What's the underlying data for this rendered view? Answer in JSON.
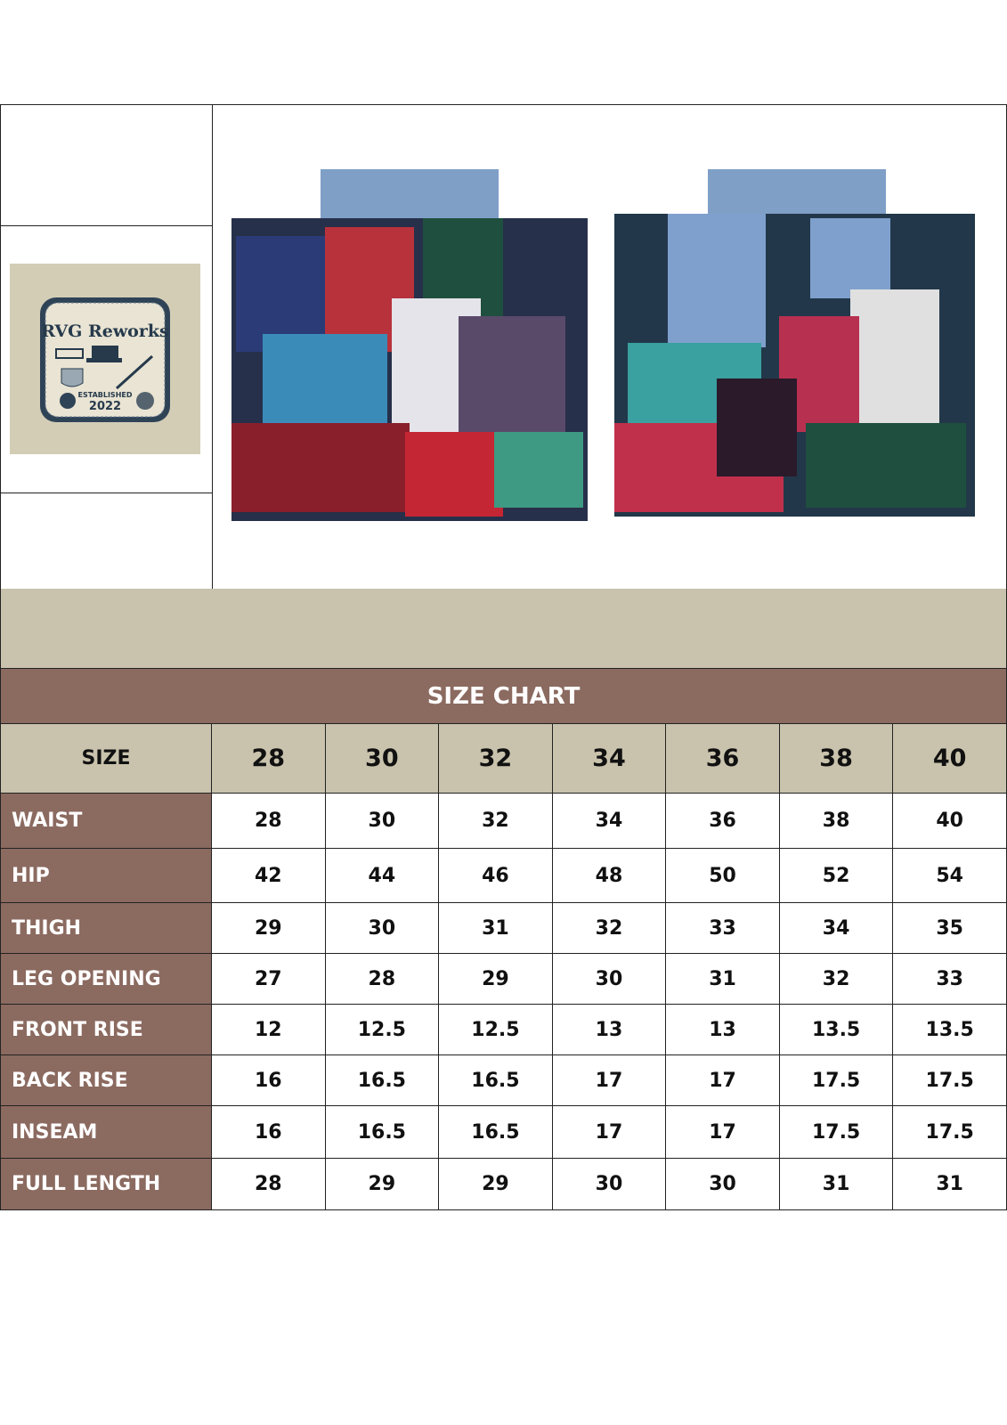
{
  "logo": {
    "brand": "RVG Reworks",
    "text": "ESTABLISHED 2022"
  },
  "images": [
    {
      "name": "shorts-front"
    },
    {
      "name": "shorts-back"
    }
  ],
  "colors": {
    "brown": "#8b6a60",
    "beige": "#c9c3ad"
  },
  "chart_data": {
    "type": "table",
    "title": "SIZE CHART",
    "header_label": "SIZE",
    "sizes": [
      "28",
      "30",
      "32",
      "34",
      "36",
      "38",
      "40"
    ],
    "rows": [
      {
        "label": "WAIST",
        "values": [
          "28",
          "30",
          "32",
          "34",
          "36",
          "38",
          "40"
        ]
      },
      {
        "label": "HIP",
        "values": [
          "42",
          "44",
          "46",
          "48",
          "50",
          "52",
          "54"
        ]
      },
      {
        "label": "THIGH",
        "values": [
          "29",
          "30",
          "31",
          "32",
          "33",
          "34",
          "35"
        ]
      },
      {
        "label": "LEG OPENING",
        "values": [
          "27",
          "28",
          "29",
          "30",
          "31",
          "32",
          "33"
        ]
      },
      {
        "label": "FRONT RISE",
        "values": [
          "12",
          "12.5",
          "12.5",
          "13",
          "13",
          "13.5",
          "13.5"
        ]
      },
      {
        "label": "BACK RISE",
        "values": [
          "16",
          "16.5",
          "16.5",
          "17",
          "17",
          "17.5",
          "17.5"
        ]
      },
      {
        "label": "INSEAM",
        "values": [
          "16",
          "16.5",
          "16.5",
          "17",
          "17",
          "17.5",
          "17.5"
        ]
      },
      {
        "label": "FULL LENGTH",
        "values": [
          "28",
          "29",
          "29",
          "30",
          "30",
          "31",
          "31"
        ]
      }
    ]
  }
}
